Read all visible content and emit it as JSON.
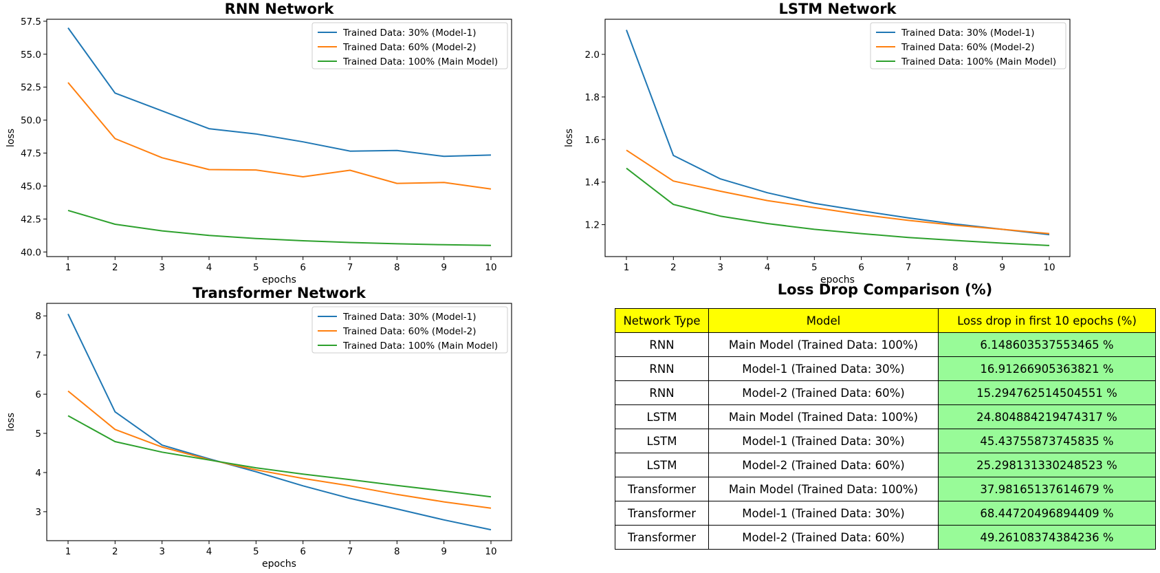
{
  "colors": {
    "series": [
      "#1f77b4",
      "#ff7f0e",
      "#2ca02c"
    ],
    "header_bg": "#ffff00",
    "drop_bg": "#98fb98"
  },
  "chart_data": [
    {
      "type": "line",
      "title": "RNN Network",
      "xlabel": "epochs",
      "ylabel": "loss",
      "x": [
        1,
        2,
        3,
        4,
        5,
        6,
        7,
        8,
        9,
        10
      ],
      "xticks": [
        "1",
        "2",
        "3",
        "4",
        "5",
        "6",
        "7",
        "8",
        "9",
        "10"
      ],
      "yticks": [
        "40.0",
        "42.5",
        "45.0",
        "47.5",
        "50.0",
        "52.5",
        "55.0",
        "57.5"
      ],
      "ylim": [
        39.65,
        57.65
      ],
      "legend": "top-right",
      "series": [
        {
          "name": "Trained Data: 30% (Model-1)",
          "values": [
            57.0,
            52.05,
            50.7,
            49.35,
            48.95,
            48.35,
            47.65,
            47.7,
            47.25,
            47.35
          ]
        },
        {
          "name": "Trained Data: 60% (Model-2)",
          "values": [
            52.85,
            48.6,
            47.15,
            46.25,
            46.22,
            45.7,
            46.2,
            45.2,
            45.27,
            44.78
          ]
        },
        {
          "name": "Trained Data: 100% (Main Model)",
          "values": [
            43.15,
            42.1,
            41.6,
            41.25,
            41.02,
            40.85,
            40.72,
            40.62,
            40.55,
            40.5
          ]
        }
      ]
    },
    {
      "type": "line",
      "title": "LSTM Network",
      "xlabel": "epochs",
      "ylabel": "loss",
      "x": [
        1,
        2,
        3,
        4,
        5,
        6,
        7,
        8,
        9,
        10
      ],
      "xticks": [
        "1",
        "2",
        "3",
        "4",
        "5",
        "6",
        "7",
        "8",
        "9",
        "10"
      ],
      "yticks": [
        "1.2",
        "1.4",
        "1.6",
        "1.8",
        "2.0"
      ],
      "ylim": [
        1.05,
        2.165
      ],
      "legend": "top-right",
      "series": [
        {
          "name": "Trained Data: 30% (Model-1)",
          "values": [
            2.115,
            1.525,
            1.415,
            1.35,
            1.3,
            1.265,
            1.232,
            1.203,
            1.178,
            1.153
          ]
        },
        {
          "name": "Trained Data: 60% (Model-2)",
          "values": [
            1.55,
            1.405,
            1.357,
            1.313,
            1.28,
            1.247,
            1.22,
            1.197,
            1.178,
            1.158
          ]
        },
        {
          "name": "Trained Data: 100% (Main Model)",
          "values": [
            1.465,
            1.295,
            1.24,
            1.205,
            1.178,
            1.158,
            1.14,
            1.126,
            1.113,
            1.102
          ]
        }
      ]
    },
    {
      "type": "line",
      "title": "Transformer Network",
      "xlabel": "epochs",
      "ylabel": "loss",
      "x": [
        1,
        2,
        3,
        4,
        5,
        6,
        7,
        8,
        9,
        10
      ],
      "xticks": [
        "1",
        "2",
        "3",
        "4",
        "5",
        "6",
        "7",
        "8",
        "9",
        "10"
      ],
      "yticks": [
        "3",
        "4",
        "5",
        "6",
        "7",
        "8"
      ],
      "ylim": [
        2.26,
        8.32
      ],
      "legend": "top-right",
      "series": [
        {
          "name": "Trained Data: 30% (Model-1)",
          "values": [
            8.05,
            5.55,
            4.7,
            4.35,
            4.02,
            3.66,
            3.34,
            3.07,
            2.79,
            2.54
          ]
        },
        {
          "name": "Trained Data: 60% (Model-2)",
          "values": [
            6.08,
            5.1,
            4.65,
            4.33,
            4.07,
            3.85,
            3.66,
            3.44,
            3.25,
            3.09
          ]
        },
        {
          "name": "Trained Data: 100% (Main Model)",
          "values": [
            5.45,
            4.79,
            4.52,
            4.32,
            4.12,
            3.96,
            3.82,
            3.67,
            3.53,
            3.38
          ]
        }
      ]
    },
    {
      "type": "table",
      "title": "Loss Drop Comparison (%)",
      "columns": [
        "Network Type",
        "Model",
        "Loss drop in first 10 epochs (%)"
      ],
      "rows": [
        [
          "RNN",
          "Main Model (Trained Data: 100%)",
          "6.148603537553465 %"
        ],
        [
          "RNN",
          "Model-1 (Trained Data: 30%)",
          "16.91266905363821 %"
        ],
        [
          "RNN",
          "Model-2 (Trained Data: 60%)",
          "15.294762514504551 %"
        ],
        [
          "LSTM",
          "Main Model (Trained Data: 100%)",
          "24.804884219474317 %"
        ],
        [
          "LSTM",
          "Model-1 (Trained Data: 30%)",
          "45.43755873745835 %"
        ],
        [
          "LSTM",
          "Model-2 (Trained Data: 60%)",
          "25.298131330248523 %"
        ],
        [
          "Transformer",
          "Main Model (Trained Data: 100%)",
          "37.98165137614679 %"
        ],
        [
          "Transformer",
          "Model-1 (Trained Data: 30%)",
          "68.44720496894409 %"
        ],
        [
          "Transformer",
          "Model-2 (Trained Data: 60%)",
          "49.26108374384236 %"
        ]
      ]
    }
  ]
}
